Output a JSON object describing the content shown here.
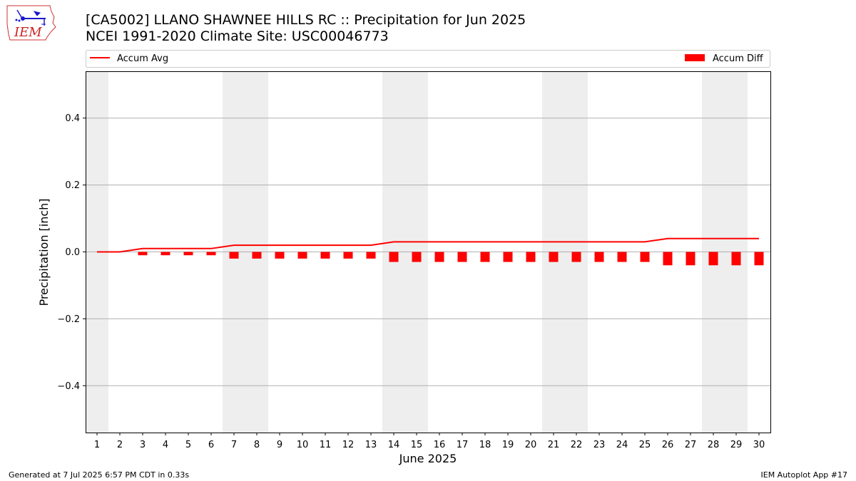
{
  "header": {
    "title": "[CA5002] LLANO SHAWNEE HILLS RC :: Precipitation for Jun 2025",
    "subtitle": "NCEI 1991-2020 Climate Site: USC00046773",
    "logo_text": "IEM"
  },
  "footer": {
    "generated": "Generated at 7 Jul 2025 6:57 PM CDT in 0.33s",
    "app": "IEM Autoplot App #17"
  },
  "colors": {
    "series": "#ff0000",
    "weekend_band": "#eeeeee",
    "grid": "#b0b0b0"
  },
  "chart_data": {
    "type": "bar",
    "xlabel": "June 2025",
    "ylabel": "Precipitation [inch]",
    "ylim": [
      -0.54,
      0.54
    ],
    "yticks": [
      -0.4,
      -0.2,
      0.0,
      0.2,
      0.4
    ],
    "ytick_labels": [
      "−0.4",
      "−0.2",
      "0.0",
      "0.2",
      "0.4"
    ],
    "grid": "horizontal",
    "legend_placement": "top, above plot",
    "categories": [
      "1",
      "2",
      "3",
      "4",
      "5",
      "6",
      "7",
      "8",
      "9",
      "10",
      "11",
      "12",
      "13",
      "14",
      "15",
      "16",
      "17",
      "18",
      "19",
      "20",
      "21",
      "22",
      "23",
      "24",
      "25",
      "26",
      "27",
      "28",
      "29",
      "30"
    ],
    "weekend_days": [
      1,
      7,
      8,
      14,
      15,
      21,
      22,
      28,
      29
    ],
    "series": [
      {
        "name": "Accum Avg",
        "type": "line",
        "color": "#ff0000",
        "values": [
          0.0,
          0.0,
          0.01,
          0.01,
          0.01,
          0.01,
          0.02,
          0.02,
          0.02,
          0.02,
          0.02,
          0.02,
          0.02,
          0.03,
          0.03,
          0.03,
          0.03,
          0.03,
          0.03,
          0.03,
          0.03,
          0.03,
          0.03,
          0.03,
          0.03,
          0.04,
          0.04,
          0.04,
          0.04,
          0.04
        ]
      },
      {
        "name": "Accum Diff",
        "type": "bar",
        "color": "#ff0000",
        "values": [
          0.0,
          0.0,
          -0.01,
          -0.01,
          -0.01,
          -0.01,
          -0.02,
          -0.02,
          -0.02,
          -0.02,
          -0.02,
          -0.02,
          -0.02,
          -0.03,
          -0.03,
          -0.03,
          -0.03,
          -0.03,
          -0.03,
          -0.03,
          -0.03,
          -0.03,
          -0.03,
          -0.03,
          -0.03,
          -0.04,
          -0.04,
          -0.04,
          -0.04,
          -0.04
        ]
      }
    ]
  }
}
